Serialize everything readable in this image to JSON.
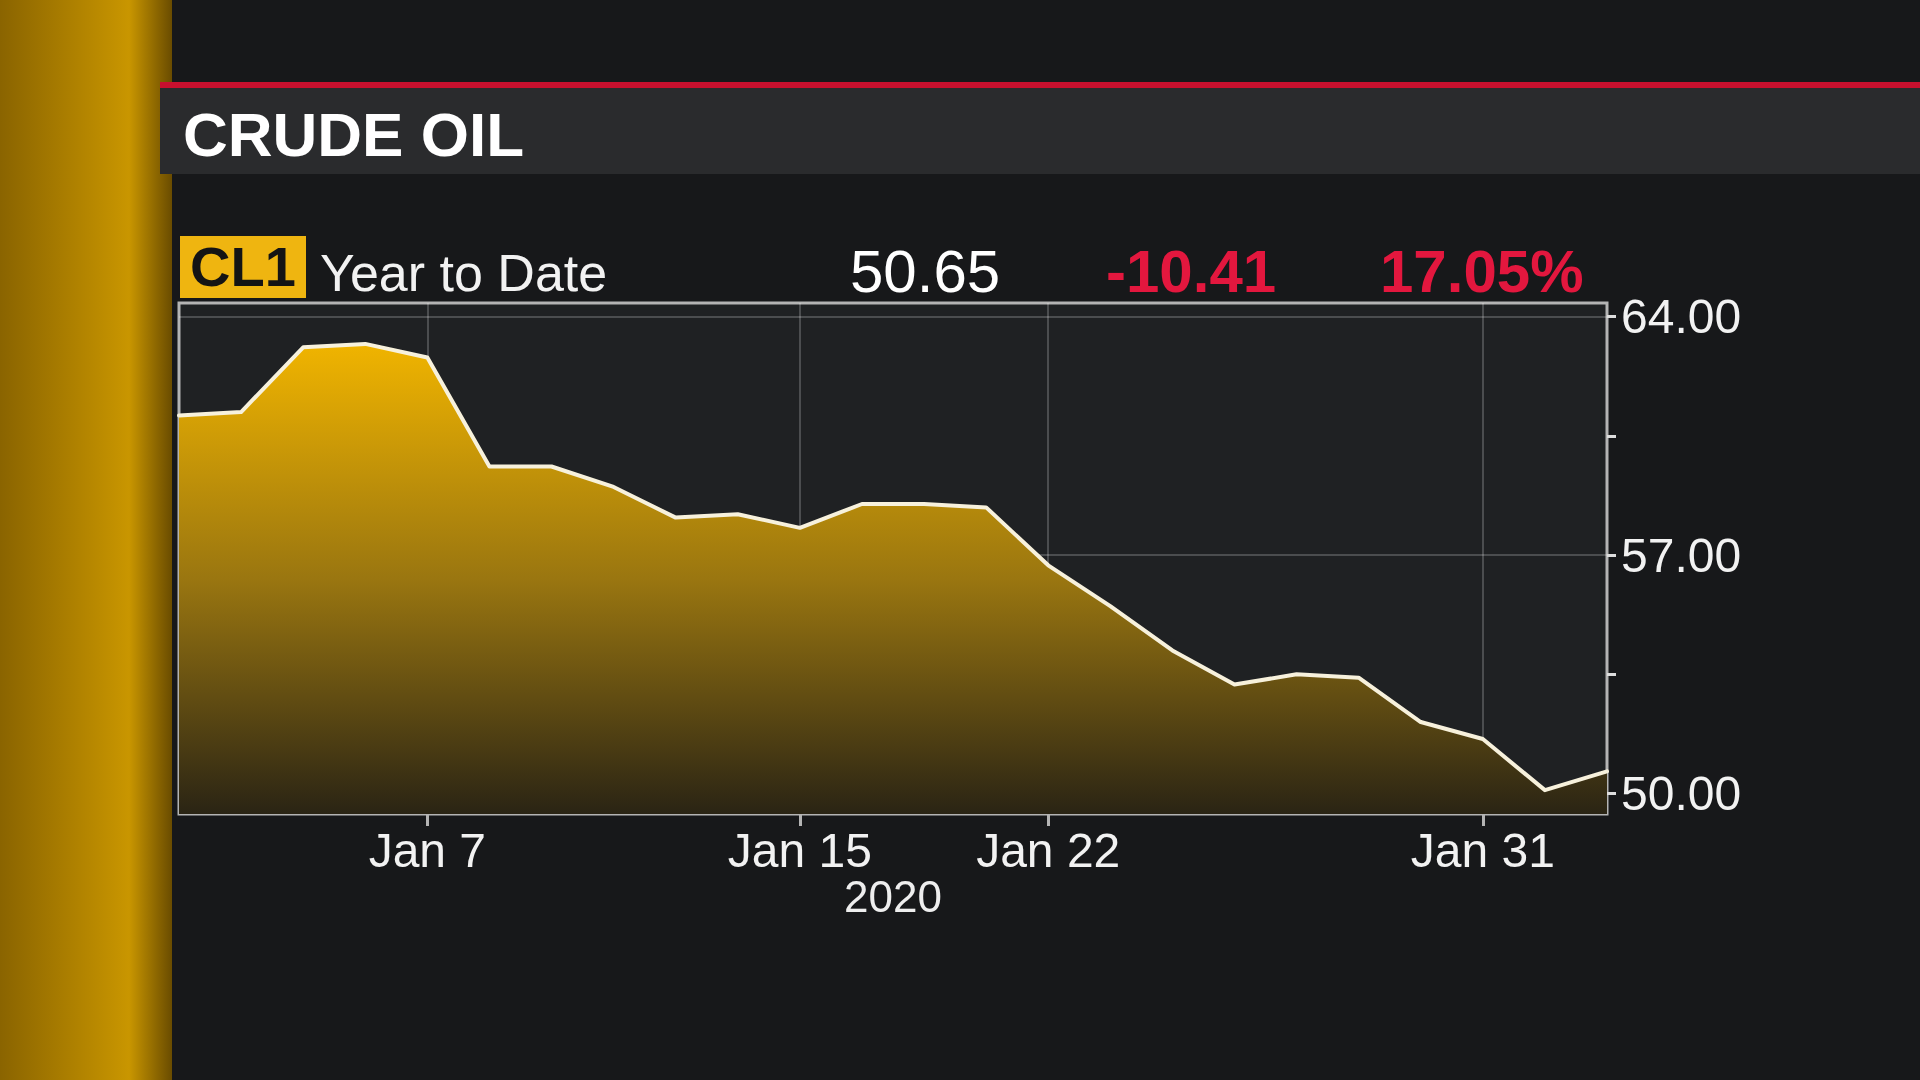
{
  "chart_data": {
    "type": "area",
    "title": "CRUDE OIL",
    "annotations": [
      "CL1",
      "Year to Date",
      "50.65",
      "-10.41",
      "17.05%"
    ],
    "xlabel": "2020",
    "categories": [
      null,
      null,
      null,
      null,
      "Jan 7",
      null,
      null,
      null,
      null,
      null,
      "Jan 15",
      null,
      null,
      null,
      "Jan 22",
      null,
      null,
      null,
      null,
      null,
      null,
      "Jan 31",
      null,
      null
    ],
    "values": [
      61.1,
      61.2,
      63.1,
      63.2,
      62.8,
      59.6,
      59.6,
      59.0,
      58.1,
      58.2,
      57.8,
      58.5,
      58.5,
      58.4,
      56.7,
      55.5,
      54.2,
      53.2,
      53.5,
      53.4,
      52.1,
      51.6,
      50.1,
      50.65
    ],
    "color": "#f0b400",
    "ylim": [
      49.4,
      64.4
    ],
    "yticks": [
      {
        "value": 50,
        "label": "50.00"
      },
      {
        "value": 53.5,
        "label": null
      },
      {
        "value": 57,
        "label": "57.00"
      },
      {
        "value": 60.5,
        "label": null
      },
      {
        "value": 64,
        "label": "64.00"
      }
    ],
    "grid": true
  }
}
